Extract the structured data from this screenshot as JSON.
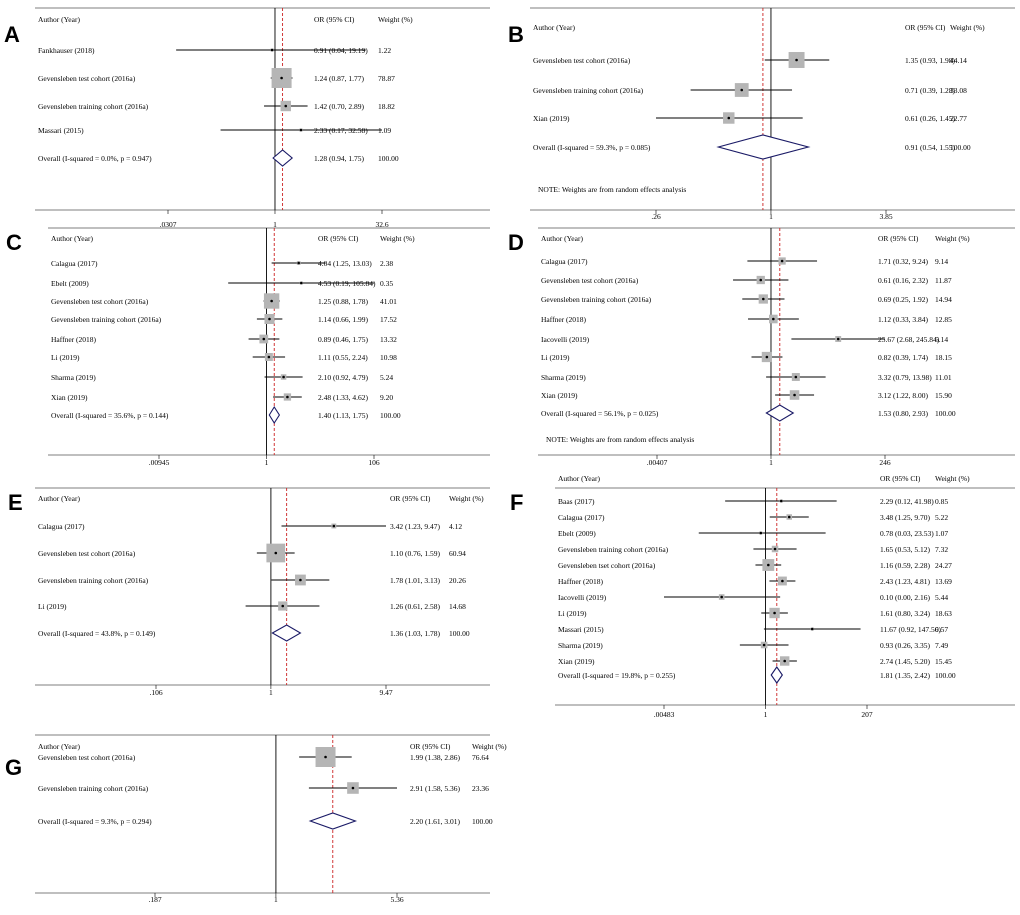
{
  "figure": {
    "headers": {
      "study": "Author (Year)",
      "or": "OR (95% CI)",
      "weight": "Weight (%)"
    },
    "colors": {
      "box": "#b5b5b5",
      "line": "#000000",
      "diamond": "#1a1a66",
      "dash": "#cc2222"
    }
  },
  "chart_data": [
    {
      "panel": "A",
      "type": "forest",
      "axis": {
        "min": 0.0307,
        "max": 32.6,
        "ticks": [
          ".0307",
          "1",
          "32.6"
        ]
      },
      "overall_effect": 1.28,
      "studies": [
        {
          "label": "Fankhauser (2018)",
          "or": 0.91,
          "lo": 0.04,
          "hi": 19.19,
          "ci_text": "0.91 (0.04, 19.19)",
          "weight": "1.22"
        },
        {
          "label": "Gevensleben test cohort (2016a)",
          "or": 1.24,
          "lo": 0.87,
          "hi": 1.77,
          "ci_text": "1.24 (0.87, 1.77)",
          "weight": "78.87"
        },
        {
          "label": "Gevensleben training cohort (2016a)",
          "or": 1.42,
          "lo": 0.7,
          "hi": 2.89,
          "ci_text": "1.42 (0.70, 2.89)",
          "weight": "18.82"
        },
        {
          "label": "Massari (2015)",
          "or": 2.33,
          "lo": 0.17,
          "hi": 32.58,
          "ci_text": "2.33 (0.17, 32.58)",
          "weight": "1.09"
        }
      ],
      "overall": {
        "label": "Overall  (I-squared = 0.0%, p = 0.947)",
        "or": 1.28,
        "lo": 0.94,
        "hi": 1.75,
        "ci_text": "1.28 (0.94, 1.75)",
        "weight": "100.00"
      },
      "note": ""
    },
    {
      "panel": "B",
      "type": "forest",
      "axis": {
        "min": 0.26,
        "max": 3.85,
        "ticks": [
          ".26",
          "1",
          "3.85"
        ]
      },
      "overall_effect": 0.91,
      "studies": [
        {
          "label": "Gevensleben test cohort (2016a)",
          "or": 1.35,
          "lo": 0.93,
          "hi": 1.98,
          "ci_text": "1.35 (0.93, 1.98)",
          "weight": "44.14"
        },
        {
          "label": "Gevensleben training cohort (2016a)",
          "or": 0.71,
          "lo": 0.39,
          "hi": 1.28,
          "ci_text": "0.71 (0.39, 1.28)",
          "weight": "33.08"
        },
        {
          "label": "Xian (2019)",
          "or": 0.61,
          "lo": 0.26,
          "hi": 1.45,
          "ci_text": "0.61 (0.26, 1.45)",
          "weight": "22.77"
        }
      ],
      "overall": {
        "label": "Overall  (I-squared = 59.3%, p = 0.085)",
        "or": 0.91,
        "lo": 0.54,
        "hi": 1.55,
        "ci_text": "0.91 (0.54, 1.55)",
        "weight": "100.00"
      },
      "note": "NOTE: Weights are from random effects analysis"
    },
    {
      "panel": "C",
      "type": "forest",
      "axis": {
        "min": 0.00945,
        "max": 106,
        "ticks": [
          ".00945",
          "1",
          "106"
        ]
      },
      "overall_effect": 1.4,
      "studies": [
        {
          "label": "Calagua (2017)",
          "or": 4.04,
          "lo": 1.25,
          "hi": 13.03,
          "ci_text": "4.04 (1.25, 13.03)",
          "weight": "2.38"
        },
        {
          "label": "Ebelt (2009)",
          "or": 4.53,
          "lo": 0.19,
          "hi": 105.84,
          "ci_text": "4.53 (0.19, 105.84)",
          "weight": "0.35"
        },
        {
          "label": "Gevensleben test cohort (2016a)",
          "or": 1.25,
          "lo": 0.88,
          "hi": 1.78,
          "ci_text": "1.25 (0.88, 1.78)",
          "weight": "41.01"
        },
        {
          "label": "Gevensleben training cohort (2016a)",
          "or": 1.14,
          "lo": 0.66,
          "hi": 1.99,
          "ci_text": "1.14 (0.66, 1.99)",
          "weight": "17.52"
        },
        {
          "label": "Haffner (2018)",
          "or": 0.89,
          "lo": 0.46,
          "hi": 1.75,
          "ci_text": "0.89 (0.46, 1.75)",
          "weight": "13.32"
        },
        {
          "label": "Li (2019)",
          "or": 1.11,
          "lo": 0.55,
          "hi": 2.24,
          "ci_text": "1.11 (0.55, 2.24)",
          "weight": "10.98"
        },
        {
          "label": "Sharma (2019)",
          "or": 2.1,
          "lo": 0.92,
          "hi": 4.79,
          "ci_text": "2.10 (0.92, 4.79)",
          "weight": "5.24"
        },
        {
          "label": "Xian (2019)",
          "or": 2.48,
          "lo": 1.33,
          "hi": 4.62,
          "ci_text": "2.48 (1.33, 4.62)",
          "weight": "9.20"
        }
      ],
      "overall": {
        "label": "Overall  (I-squared = 35.6%, p = 0.144)",
        "or": 1.4,
        "lo": 1.13,
        "hi": 1.75,
        "ci_text": "1.40 (1.13, 1.75)",
        "weight": "100.00"
      },
      "note": ""
    },
    {
      "panel": "D",
      "type": "forest",
      "axis": {
        "min": 0.00407,
        "max": 246,
        "ticks": [
          ".00407",
          "1",
          "246"
        ]
      },
      "overall_effect": 1.53,
      "studies": [
        {
          "label": "Calagua (2017)",
          "or": 1.71,
          "lo": 0.32,
          "hi": 9.24,
          "ci_text": "1.71 (0.32, 9.24)",
          "weight": "9.14"
        },
        {
          "label": "Gevensleben test cohort (2016a)",
          "or": 0.61,
          "lo": 0.16,
          "hi": 2.32,
          "ci_text": "0.61 (0.16, 2.32)",
          "weight": "11.87"
        },
        {
          "label": "Gevensleben training cohort (2016a)",
          "or": 0.69,
          "lo": 0.25,
          "hi": 1.92,
          "ci_text": "0.69 (0.25, 1.92)",
          "weight": "14.94"
        },
        {
          "label": "Haffner (2018)",
          "or": 1.12,
          "lo": 0.33,
          "hi": 3.84,
          "ci_text": "1.12 (0.33, 3.84)",
          "weight": "12.85"
        },
        {
          "label": "Iacovelli (2019)",
          "or": 25.67,
          "lo": 2.68,
          "hi": 245.84,
          "ci_text": "25.67 (2.68, 245.84)",
          "weight": "6.14"
        },
        {
          "label": "Li (2019)",
          "or": 0.82,
          "lo": 0.39,
          "hi": 1.74,
          "ci_text": "0.82 (0.39, 1.74)",
          "weight": "18.15"
        },
        {
          "label": "Sharma (2019)",
          "or": 3.32,
          "lo": 0.79,
          "hi": 13.98,
          "ci_text": "3.32 (0.79, 13.98)",
          "weight": "11.01"
        },
        {
          "label": "Xian (2019)",
          "or": 3.12,
          "lo": 1.22,
          "hi": 8.0,
          "ci_text": "3.12 (1.22, 8.00)",
          "weight": "15.90"
        }
      ],
      "overall": {
        "label": "Overall  (I-squared = 56.1%, p = 0.025)",
        "or": 1.53,
        "lo": 0.8,
        "hi": 2.93,
        "ci_text": "1.53 (0.80, 2.93)",
        "weight": "100.00"
      },
      "note": "NOTE: Weights are from random effects analysis"
    },
    {
      "panel": "E",
      "type": "forest",
      "axis": {
        "min": 0.106,
        "max": 9.47,
        "ticks": [
          ".106",
          "1",
          "9.47"
        ]
      },
      "overall_effect": 1.36,
      "studies": [
        {
          "label": "Calagua (2017)",
          "or": 3.42,
          "lo": 1.23,
          "hi": 9.47,
          "ci_text": "3.42 (1.23, 9.47)",
          "weight": "4.12"
        },
        {
          "label": "Gevensleben test cohort (2016a)",
          "or": 1.1,
          "lo": 0.76,
          "hi": 1.59,
          "ci_text": "1.10 (0.76, 1.59)",
          "weight": "60.94"
        },
        {
          "label": "Gevensleben training cohort (2016a)",
          "or": 1.78,
          "lo": 1.01,
          "hi": 3.13,
          "ci_text": "1.78 (1.01, 3.13)",
          "weight": "20.26"
        },
        {
          "label": "Li (2019)",
          "or": 1.26,
          "lo": 0.61,
          "hi": 2.58,
          "ci_text": "1.26 (0.61, 2.58)",
          "weight": "14.68"
        }
      ],
      "overall": {
        "label": "Overall  (I-squared = 43.8%, p = 0.149)",
        "or": 1.36,
        "lo": 1.03,
        "hi": 1.78,
        "ci_text": "1.36 (1.03, 1.78)",
        "weight": "100.00"
      },
      "note": ""
    },
    {
      "panel": "F",
      "type": "forest",
      "axis": {
        "min": 0.00483,
        "max": 207,
        "ticks": [
          ".00483",
          "1",
          "207"
        ]
      },
      "overall_effect": 1.81,
      "studies": [
        {
          "label": "Baas (2017)",
          "or": 2.29,
          "lo": 0.12,
          "hi": 41.98,
          "ci_text": "2.29 (0.12, 41.98)",
          "weight": "0.85"
        },
        {
          "label": "Calagua (2017)",
          "or": 3.48,
          "lo": 1.25,
          "hi": 9.7,
          "ci_text": "3.48 (1.25, 9.70)",
          "weight": "5.22"
        },
        {
          "label": "Ebelt (2009)",
          "or": 0.78,
          "lo": 0.03,
          "hi": 23.53,
          "ci_text": "0.78 (0.03, 23.53)",
          "weight": "1.07"
        },
        {
          "label": "Gevensleben training cohort (2016a)",
          "or": 1.65,
          "lo": 0.53,
          "hi": 5.12,
          "ci_text": "1.65 (0.53, 5.12)",
          "weight": "7.32"
        },
        {
          "label": "Gevensleben tset cohort (2016a)",
          "or": 1.16,
          "lo": 0.59,
          "hi": 2.28,
          "ci_text": "1.16 (0.59, 2.28)",
          "weight": "24.27"
        },
        {
          "label": "Haffner (2018)",
          "or": 2.43,
          "lo": 1.23,
          "hi": 4.81,
          "ci_text": "2.43 (1.23, 4.81)",
          "weight": "13.69"
        },
        {
          "label": "Iacovelli (2019)",
          "or": 0.1,
          "lo": 0.0,
          "hi": 2.16,
          "ci_text": "0.10 (0.00, 2.16)",
          "weight": "5.44"
        },
        {
          "label": "Li (2019)",
          "or": 1.61,
          "lo": 0.8,
          "hi": 3.24,
          "ci_text": "1.61 (0.80, 3.24)",
          "weight": "18.63"
        },
        {
          "label": "Massari (2015)",
          "or": 11.67,
          "lo": 0.92,
          "hi": 147.56,
          "ci_text": "11.67 (0.92, 147.56)",
          "weight": "0.57"
        },
        {
          "label": "Sharma (2019)",
          "or": 0.93,
          "lo": 0.26,
          "hi": 3.35,
          "ci_text": "0.93 (0.26, 3.35)",
          "weight": "7.49"
        },
        {
          "label": "Xian (2019)",
          "or": 2.74,
          "lo": 1.45,
          "hi": 5.2,
          "ci_text": "2.74 (1.45, 5.20)",
          "weight": "15.45"
        }
      ],
      "overall": {
        "label": "Overall  (I-squared = 19.8%, p = 0.255)",
        "or": 1.81,
        "lo": 1.35,
        "hi": 2.42,
        "ci_text": "1.81 (1.35, 2.42)",
        "weight": "100.00"
      },
      "note": ""
    },
    {
      "panel": "G",
      "type": "forest",
      "axis": {
        "min": 0.187,
        "max": 5.36,
        "ticks": [
          ".187",
          "1",
          "5.36"
        ]
      },
      "overall_effect": 2.2,
      "studies": [
        {
          "label": "Gevensleben test cohort (2016a)",
          "or": 1.99,
          "lo": 1.38,
          "hi": 2.86,
          "ci_text": "1.99 (1.38, 2.86)",
          "weight": "76.64"
        },
        {
          "label": "Gevensleben training cohort (2016a)",
          "or": 2.91,
          "lo": 1.58,
          "hi": 5.36,
          "ci_text": "2.91 (1.58, 5.36)",
          "weight": "23.36"
        }
      ],
      "overall": {
        "label": "Overall  (I-squared = 9.3%, p = 0.294)",
        "or": 2.2,
        "lo": 1.61,
        "hi": 3.01,
        "ci_text": "2.20 (1.61, 3.01)",
        "weight": "100.00"
      },
      "note": ""
    }
  ]
}
